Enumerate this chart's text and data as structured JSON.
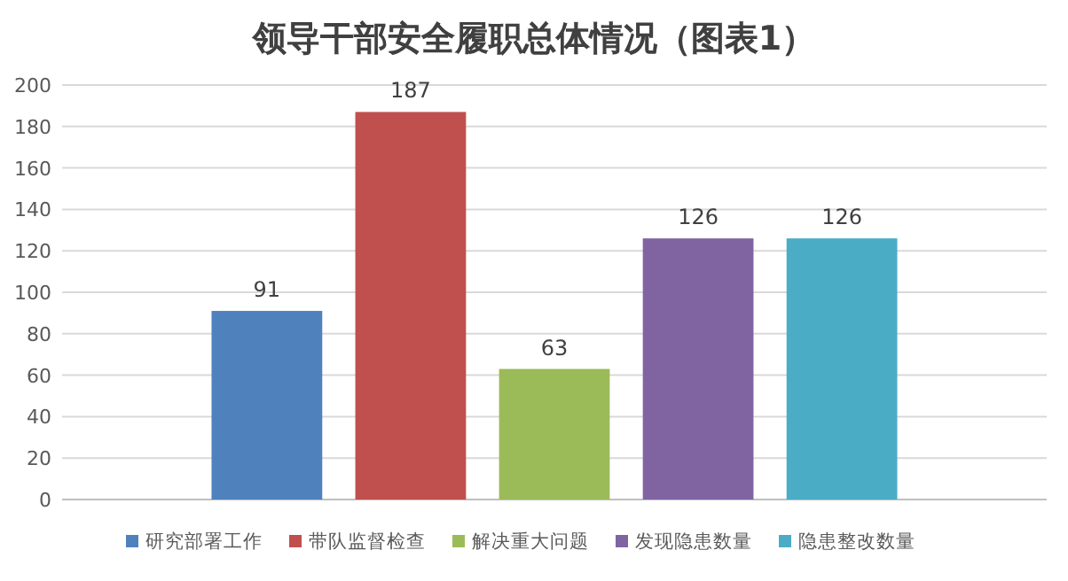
{
  "chart_data": {
    "type": "bar",
    "title": "领导干部安全履职总体情况（图表1）",
    "categories": [
      null
    ],
    "series": [
      {
        "name": "研究部署工作",
        "color": "#4f81bd",
        "values": [
          91
        ]
      },
      {
        "name": "带队监督检查",
        "color": "#c0504d",
        "values": [
          187
        ]
      },
      {
        "name": "解决重大问题",
        "color": "#9bbb59",
        "values": [
          63
        ]
      },
      {
        "name": "发现隐患数量",
        "color": "#8064a2",
        "values": [
          126
        ]
      },
      {
        "name": "隐患整改数量",
        "color": "#4bacc6",
        "values": [
          126
        ]
      }
    ],
    "ylim": [
      0,
      200
    ],
    "yticks": [
      0,
      20,
      40,
      60,
      80,
      100,
      120,
      140,
      160,
      180,
      200
    ],
    "grid": "y",
    "legend": "bottom",
    "data_labels": true
  }
}
